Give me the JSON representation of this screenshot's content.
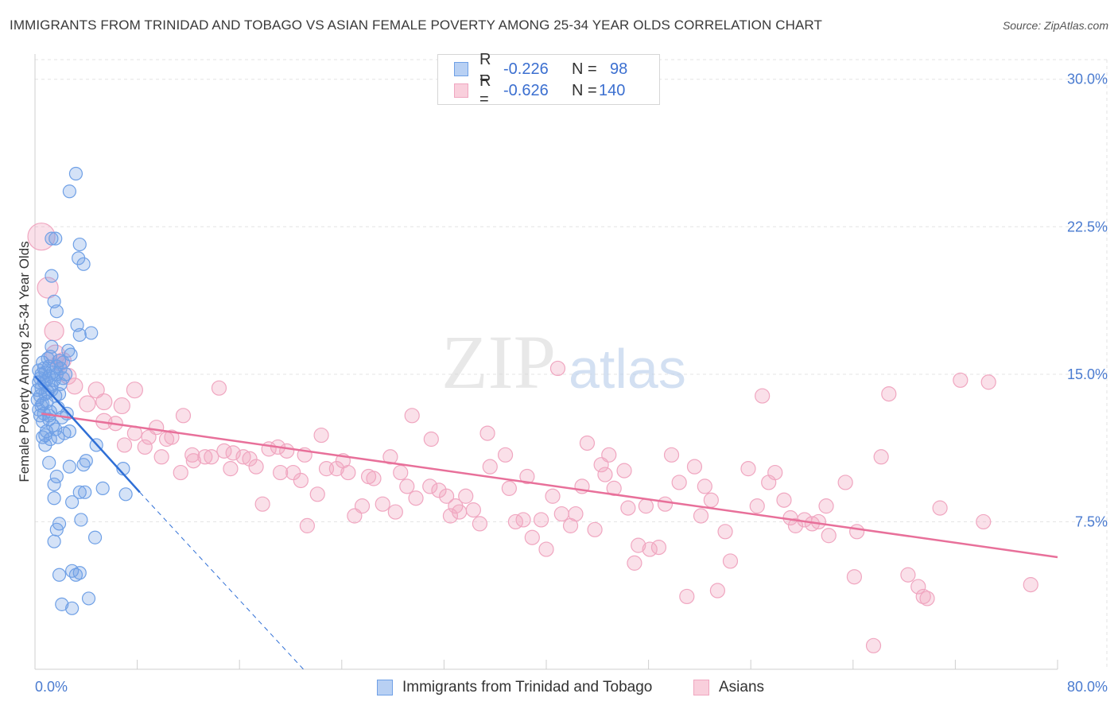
{
  "title": "IMMIGRANTS FROM TRINIDAD AND TOBAGO VS ASIAN FEMALE POVERTY AMONG 25-34 YEAR OLDS CORRELATION CHART",
  "source": "Source: ZipAtlas.com",
  "watermark": {
    "zip": "ZIP",
    "atlas": "atlas"
  },
  "legend": {
    "rows": [
      {
        "r_label": "R =",
        "r_value": "-0.226",
        "n_label": "N =",
        "n_value": "98"
      },
      {
        "r_label": "R =",
        "r_value": "-0.626",
        "n_label": "N =",
        "n_value": "140"
      }
    ]
  },
  "bottom_legend": {
    "series1": "Immigrants from Trinidad and Tobago",
    "series2": "Asians"
  },
  "colors": {
    "blue": "#6fa0e6",
    "blue_line": "#2f6fd6",
    "pink": "#f0a6c0",
    "pink_line": "#e8709a",
    "axis_text": "#4a7bd0"
  },
  "chart_data": {
    "type": "scatter",
    "title": "IMMIGRANTS FROM TRINIDAD AND TOBAGO VS ASIAN FEMALE POVERTY AMONG 25-34 YEAR OLDS CORRELATION CHART",
    "xlabel": "",
    "ylabel": "Female Poverty Among 25-34 Year Olds",
    "xlim": [
      0,
      80
    ],
    "ylim": [
      0,
      31
    ],
    "x_tick_labels": [
      "0.0%",
      "80.0%"
    ],
    "y_ticks": [
      7.5,
      15.0,
      22.5,
      30.0
    ],
    "y_tick_labels": [
      "7.5%",
      "15.0%",
      "22.5%",
      "30.0%"
    ],
    "series": [
      {
        "name": "Immigrants from Trinidad and Tobago",
        "R": -0.226,
        "N": 98,
        "trend": {
          "x0": 0,
          "y0": 14.9,
          "x1": 8.2,
          "y1": 9.0,
          "dash_to_x": 21,
          "dash_to_y": 0
        },
        "points": [
          [
            3.2,
            25.2
          ],
          [
            2.7,
            24.3
          ],
          [
            1.3,
            21.9
          ],
          [
            1.6,
            21.9
          ],
          [
            3.5,
            21.6
          ],
          [
            3.4,
            20.9
          ],
          [
            3.8,
            20.6
          ],
          [
            1.3,
            20.0
          ],
          [
            1.5,
            18.7
          ],
          [
            1.7,
            18.2
          ],
          [
            3.3,
            17.5
          ],
          [
            3.5,
            17.0
          ],
          [
            4.4,
            17.1
          ],
          [
            1.3,
            16.4
          ],
          [
            1.2,
            15.9
          ],
          [
            2.6,
            16.2
          ],
          [
            2.8,
            16.0
          ],
          [
            1.9,
            15.7
          ],
          [
            2.2,
            15.6
          ],
          [
            1.7,
            15.4
          ],
          [
            0.6,
            15.6
          ],
          [
            1.1,
            15.4
          ],
          [
            0.8,
            15.1
          ],
          [
            0.5,
            15.0
          ],
          [
            0.4,
            14.8
          ],
          [
            0.7,
            14.6
          ],
          [
            1.1,
            14.9
          ],
          [
            1.5,
            14.7
          ],
          [
            2.0,
            15.3
          ],
          [
            1.3,
            14.4
          ],
          [
            0.2,
            14.2
          ],
          [
            0.4,
            13.9
          ],
          [
            0.6,
            13.5
          ],
          [
            1.0,
            14.1
          ],
          [
            1.6,
            13.9
          ],
          [
            0.3,
            13.2
          ],
          [
            0.7,
            13.0
          ],
          [
            1.1,
            12.9
          ],
          [
            2.1,
            12.8
          ],
          [
            1.4,
            12.4
          ],
          [
            2.7,
            12.1
          ],
          [
            0.9,
            12.1
          ],
          [
            1.2,
            11.7
          ],
          [
            1.8,
            11.8
          ],
          [
            0.6,
            11.8
          ],
          [
            0.8,
            11.4
          ],
          [
            4.8,
            11.4
          ],
          [
            1.1,
            10.5
          ],
          [
            2.7,
            10.3
          ],
          [
            3.8,
            10.4
          ],
          [
            4.0,
            10.6
          ],
          [
            6.9,
            10.2
          ],
          [
            1.7,
            9.8
          ],
          [
            1.5,
            9.4
          ],
          [
            3.5,
            9.0
          ],
          [
            3.9,
            9.0
          ],
          [
            5.3,
            9.2
          ],
          [
            7.1,
            8.9
          ],
          [
            1.5,
            8.7
          ],
          [
            2.9,
            8.5
          ],
          [
            3.6,
            7.6
          ],
          [
            1.9,
            7.4
          ],
          [
            1.7,
            7.1
          ],
          [
            4.7,
            6.7
          ],
          [
            1.5,
            6.5
          ],
          [
            2.9,
            5.0
          ],
          [
            3.5,
            4.9
          ],
          [
            1.9,
            4.8
          ],
          [
            3.2,
            4.8
          ],
          [
            4.2,
            3.6
          ],
          [
            2.1,
            3.3
          ],
          [
            2.9,
            3.1
          ],
          [
            0.5,
            14.3
          ],
          [
            0.9,
            13.6
          ],
          [
            1.9,
            14.0
          ],
          [
            2.4,
            15.0
          ],
          [
            0.3,
            15.2
          ],
          [
            0.6,
            12.6
          ],
          [
            1.8,
            13.3
          ],
          [
            2.3,
            12.0
          ],
          [
            1.0,
            15.8
          ],
          [
            0.2,
            13.7
          ],
          [
            1.4,
            15.1
          ],
          [
            0.8,
            14.0
          ],
          [
            2.0,
            14.5
          ],
          [
            0.4,
            12.9
          ],
          [
            1.6,
            12.2
          ],
          [
            0.7,
            15.3
          ],
          [
            1.2,
            13.1
          ],
          [
            0.9,
            14.7
          ],
          [
            0.5,
            13.4
          ],
          [
            2.5,
            13.0
          ],
          [
            1.3,
            14.2
          ],
          [
            0.3,
            14.6
          ],
          [
            1.7,
            15.0
          ],
          [
            0.8,
            11.9
          ],
          [
            1.1,
            12.7
          ],
          [
            2.2,
            14.8
          ]
        ]
      },
      {
        "name": "Asians",
        "R": -0.626,
        "N": 140,
        "trend": {
          "x0": 0.5,
          "y0": 13.0,
          "x1": 80,
          "y1": 5.7
        },
        "points": [
          [
            0.5,
            22.0
          ],
          [
            1.0,
            19.4
          ],
          [
            1.5,
            17.2
          ],
          [
            1.6,
            16.0
          ],
          [
            1.9,
            15.6
          ],
          [
            2.2,
            15.7
          ],
          [
            2.6,
            14.9
          ],
          [
            3.1,
            14.4
          ],
          [
            4.8,
            14.2
          ],
          [
            4.1,
            13.5
          ],
          [
            5.4,
            13.6
          ],
          [
            6.8,
            13.4
          ],
          [
            7.8,
            14.2
          ],
          [
            5.4,
            12.6
          ],
          [
            6.3,
            12.5
          ],
          [
            7.8,
            12.0
          ],
          [
            8.9,
            11.8
          ],
          [
            9.5,
            12.3
          ],
          [
            7.0,
            11.4
          ],
          [
            8.6,
            11.3
          ],
          [
            10.3,
            11.7
          ],
          [
            10.7,
            11.8
          ],
          [
            9.9,
            10.8
          ],
          [
            11.4,
            10.0
          ],
          [
            11.6,
            12.9
          ],
          [
            12.3,
            10.9
          ],
          [
            12.4,
            10.6
          ],
          [
            13.3,
            10.8
          ],
          [
            13.8,
            10.8
          ],
          [
            14.4,
            14.3
          ],
          [
            14.8,
            11.1
          ],
          [
            15.3,
            10.2
          ],
          [
            15.5,
            11.0
          ],
          [
            16.3,
            10.8
          ],
          [
            16.8,
            10.7
          ],
          [
            17.3,
            10.3
          ],
          [
            17.8,
            8.4
          ],
          [
            18.3,
            11.2
          ],
          [
            19.0,
            11.3
          ],
          [
            19.2,
            10.0
          ],
          [
            19.7,
            11.1
          ],
          [
            20.2,
            10.0
          ],
          [
            20.8,
            9.6
          ],
          [
            21.1,
            10.9
          ],
          [
            21.3,
            7.3
          ],
          [
            22.1,
            8.9
          ],
          [
            22.4,
            11.9
          ],
          [
            22.8,
            10.2
          ],
          [
            23.6,
            10.2
          ],
          [
            24.1,
            10.6
          ],
          [
            24.5,
            10.0
          ],
          [
            25.0,
            7.8
          ],
          [
            25.6,
            8.3
          ],
          [
            26.1,
            9.8
          ],
          [
            26.5,
            9.7
          ],
          [
            27.2,
            8.4
          ],
          [
            27.8,
            10.8
          ],
          [
            28.2,
            8.0
          ],
          [
            28.6,
            10.0
          ],
          [
            29.1,
            9.3
          ],
          [
            29.5,
            12.9
          ],
          [
            29.8,
            8.7
          ],
          [
            30.9,
            9.3
          ],
          [
            31.0,
            11.7
          ],
          [
            31.6,
            9.1
          ],
          [
            32.2,
            8.8
          ],
          [
            32.5,
            7.8
          ],
          [
            32.9,
            8.3
          ],
          [
            33.2,
            8.0
          ],
          [
            33.7,
            8.8
          ],
          [
            34.3,
            8.1
          ],
          [
            34.8,
            7.4
          ],
          [
            35.4,
            12.0
          ],
          [
            35.6,
            10.3
          ],
          [
            36.8,
            10.9
          ],
          [
            37.1,
            9.2
          ],
          [
            37.6,
            7.5
          ],
          [
            38.2,
            7.6
          ],
          [
            38.5,
            9.8
          ],
          [
            38.9,
            6.7
          ],
          [
            39.6,
            7.6
          ],
          [
            40.0,
            6.1
          ],
          [
            40.5,
            8.8
          ],
          [
            40.9,
            15.3
          ],
          [
            41.2,
            7.9
          ],
          [
            41.9,
            7.3
          ],
          [
            42.3,
            7.9
          ],
          [
            42.8,
            9.3
          ],
          [
            43.2,
            11.5
          ],
          [
            43.8,
            7.1
          ],
          [
            44.3,
            10.4
          ],
          [
            44.6,
            9.9
          ],
          [
            44.9,
            10.9
          ],
          [
            45.3,
            9.2
          ],
          [
            46.1,
            10.1
          ],
          [
            46.4,
            8.2
          ],
          [
            46.9,
            5.4
          ],
          [
            47.2,
            6.3
          ],
          [
            47.8,
            8.3
          ],
          [
            48.1,
            6.1
          ],
          [
            48.8,
            6.2
          ],
          [
            49.3,
            8.4
          ],
          [
            49.8,
            10.9
          ],
          [
            50.4,
            9.5
          ],
          [
            51.0,
            3.7
          ],
          [
            51.6,
            10.3
          ],
          [
            52.1,
            7.8
          ],
          [
            52.4,
            9.3
          ],
          [
            52.9,
            8.6
          ],
          [
            53.4,
            4.0
          ],
          [
            54.0,
            7.0
          ],
          [
            54.4,
            5.5
          ],
          [
            55.8,
            10.2
          ],
          [
            56.5,
            8.3
          ],
          [
            56.9,
            13.9
          ],
          [
            57.4,
            9.5
          ],
          [
            57.9,
            10.0
          ],
          [
            58.6,
            8.6
          ],
          [
            59.1,
            7.7
          ],
          [
            59.5,
            7.3
          ],
          [
            60.2,
            7.6
          ],
          [
            60.8,
            7.4
          ],
          [
            61.3,
            7.5
          ],
          [
            61.9,
            8.3
          ],
          [
            62.1,
            6.8
          ],
          [
            63.4,
            9.5
          ],
          [
            64.1,
            4.7
          ],
          [
            64.3,
            7.0
          ],
          [
            65.6,
            1.2
          ],
          [
            66.2,
            10.8
          ],
          [
            66.8,
            14.0
          ],
          [
            68.3,
            4.8
          ],
          [
            69.1,
            4.2
          ],
          [
            69.5,
            3.7
          ],
          [
            69.8,
            3.6
          ],
          [
            70.8,
            8.2
          ],
          [
            72.4,
            14.7
          ],
          [
            74.2,
            7.5
          ],
          [
            77.9,
            4.3
          ],
          [
            74.6,
            14.6
          ]
        ]
      }
    ]
  }
}
